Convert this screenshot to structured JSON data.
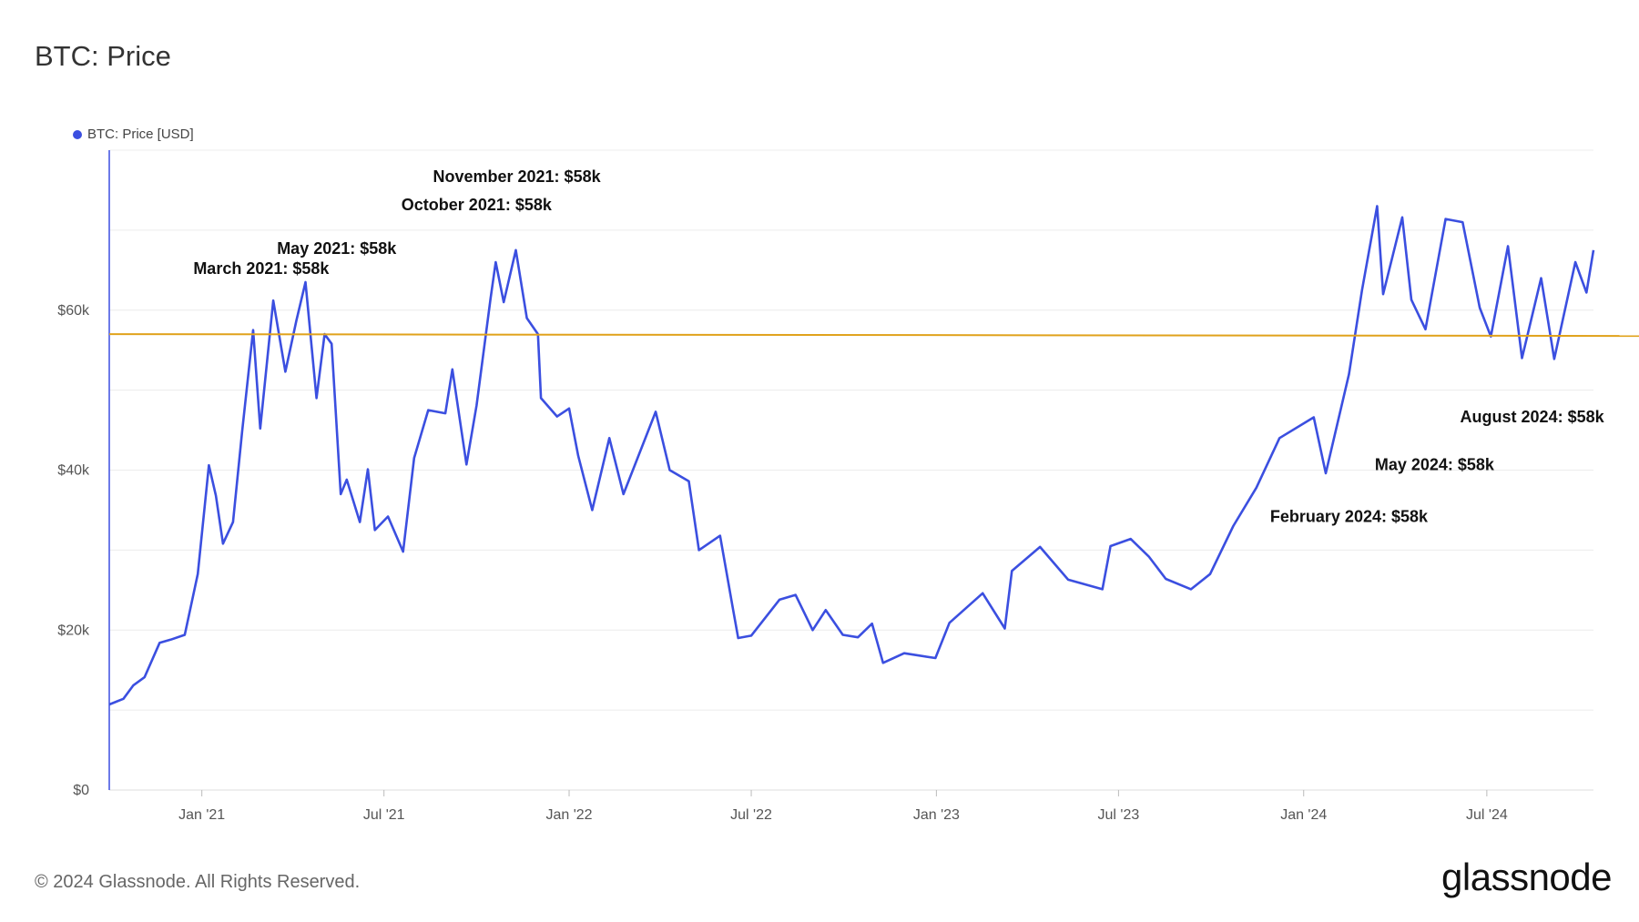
{
  "title": "BTC: Price",
  "legend": {
    "label": "BTC: Price [USD]"
  },
  "footer": {
    "copyright": "© 2024 Glassnode. All Rights Reserved.",
    "logo": "glassnode"
  },
  "colors": {
    "series": "#3b4fe0",
    "reference_line": "#e0a21b",
    "grid": "#ececec",
    "axis": "#3b4fe0"
  },
  "chart_data": {
    "type": "line",
    "title": "BTC: Price",
    "xlabel": "",
    "ylabel": "",
    "ylim": [
      0,
      80000
    ],
    "xlim": [
      "2020-10-01",
      "2024-10-15"
    ],
    "grid": true,
    "legend_position": "top-left",
    "y_ticks": [
      {
        "value": 0,
        "label": "$0"
      },
      {
        "value": 20000,
        "label": "$20k"
      },
      {
        "value": 40000,
        "label": "$40k"
      },
      {
        "value": 60000,
        "label": "$60k"
      }
    ],
    "x_ticks": [
      {
        "date": "2021-01-01",
        "label": "Jan '21"
      },
      {
        "date": "2021-07-01",
        "label": "Jul '21"
      },
      {
        "date": "2022-01-01",
        "label": "Jan '22"
      },
      {
        "date": "2022-07-01",
        "label": "Jul '22"
      },
      {
        "date": "2023-01-01",
        "label": "Jan '23"
      },
      {
        "date": "2023-07-01",
        "label": "Jul '23"
      },
      {
        "date": "2024-01-01",
        "label": "Jan '24"
      },
      {
        "date": "2024-07-01",
        "label": "Jul '24"
      }
    ],
    "reference_line": {
      "value": 57000
    },
    "annotations": [
      {
        "text": "March 2021: $58k",
        "date": "2021-03-01",
        "value": 64500
      },
      {
        "text": "May 2021: $58k",
        "date": "2021-05-15",
        "value": 67000
      },
      {
        "text": "October 2021: $58k",
        "date": "2021-10-01",
        "value": 72500
      },
      {
        "text": "November 2021: $58k",
        "date": "2021-11-10",
        "value": 76000
      },
      {
        "text": "August 2024: $58k",
        "date": "2024-08-15",
        "value": 46000
      },
      {
        "text": "May 2024: $58k",
        "date": "2024-05-10",
        "value": 40000
      },
      {
        "text": "February 2024: $58k",
        "date": "2024-02-15",
        "value": 33500
      }
    ],
    "series": [
      {
        "name": "BTC: Price [USD]",
        "points": [
          [
            "2020-10-01",
            10700
          ],
          [
            "2020-10-15",
            11400
          ],
          [
            "2020-10-25",
            13100
          ],
          [
            "2020-11-05",
            14100
          ],
          [
            "2020-11-20",
            18400
          ],
          [
            "2020-12-01",
            18800
          ],
          [
            "2020-12-15",
            19400
          ],
          [
            "2020-12-28",
            27000
          ],
          [
            "2021-01-08",
            40600
          ],
          [
            "2021-01-15",
            36800
          ],
          [
            "2021-01-22",
            30800
          ],
          [
            "2021-02-01",
            33500
          ],
          [
            "2021-02-10",
            44800
          ],
          [
            "2021-02-21",
            57500
          ],
          [
            "2021-02-28",
            45200
          ],
          [
            "2021-03-13",
            61200
          ],
          [
            "2021-03-25",
            52300
          ],
          [
            "2021-04-05",
            58700
          ],
          [
            "2021-04-14",
            63500
          ],
          [
            "2021-04-25",
            49000
          ],
          [
            "2021-05-03",
            57000
          ],
          [
            "2021-05-10",
            55800
          ],
          [
            "2021-05-19",
            37000
          ],
          [
            "2021-05-25",
            38800
          ],
          [
            "2021-06-07",
            33500
          ],
          [
            "2021-06-15",
            40100
          ],
          [
            "2021-06-22",
            32500
          ],
          [
            "2021-07-05",
            34200
          ],
          [
            "2021-07-20",
            29800
          ],
          [
            "2021-07-31",
            41500
          ],
          [
            "2021-08-14",
            47500
          ],
          [
            "2021-08-31",
            47100
          ],
          [
            "2021-09-07",
            52600
          ],
          [
            "2021-09-21",
            40700
          ],
          [
            "2021-10-01",
            48100
          ],
          [
            "2021-10-15",
            61500
          ],
          [
            "2021-10-20",
            66000
          ],
          [
            "2021-10-28",
            61000
          ],
          [
            "2021-11-09",
            67500
          ],
          [
            "2021-11-20",
            59000
          ],
          [
            "2021-12-01",
            57000
          ],
          [
            "2021-12-04",
            49000
          ],
          [
            "2021-12-20",
            46700
          ],
          [
            "2022-01-01",
            47700
          ],
          [
            "2022-01-10",
            41800
          ],
          [
            "2022-01-24",
            35000
          ],
          [
            "2022-02-10",
            44000
          ],
          [
            "2022-02-24",
            37000
          ],
          [
            "2022-03-28",
            47300
          ],
          [
            "2022-04-11",
            40000
          ],
          [
            "2022-04-30",
            38600
          ],
          [
            "2022-05-10",
            30000
          ],
          [
            "2022-05-31",
            31800
          ],
          [
            "2022-06-13",
            22500
          ],
          [
            "2022-06-18",
            19000
          ],
          [
            "2022-07-01",
            19300
          ],
          [
            "2022-07-29",
            23800
          ],
          [
            "2022-08-14",
            24400
          ],
          [
            "2022-08-31",
            20000
          ],
          [
            "2022-09-13",
            22500
          ],
          [
            "2022-09-30",
            19400
          ],
          [
            "2022-10-15",
            19100
          ],
          [
            "2022-10-29",
            20800
          ],
          [
            "2022-11-09",
            15900
          ],
          [
            "2022-11-30",
            17100
          ],
          [
            "2022-12-31",
            16500
          ],
          [
            "2023-01-14",
            20900
          ],
          [
            "2023-02-16",
            24600
          ],
          [
            "2023-03-10",
            20200
          ],
          [
            "2023-03-17",
            27400
          ],
          [
            "2023-04-14",
            30400
          ],
          [
            "2023-05-12",
            26300
          ],
          [
            "2023-06-15",
            25100
          ],
          [
            "2023-06-23",
            30500
          ],
          [
            "2023-07-13",
            31400
          ],
          [
            "2023-07-31",
            29200
          ],
          [
            "2023-08-17",
            26400
          ],
          [
            "2023-09-11",
            25100
          ],
          [
            "2023-09-30",
            27000
          ],
          [
            "2023-10-23",
            33000
          ],
          [
            "2023-11-15",
            37800
          ],
          [
            "2023-12-08",
            44000
          ],
          [
            "2024-01-11",
            46600
          ],
          [
            "2024-01-23",
            39600
          ],
          [
            "2024-02-15",
            52000
          ],
          [
            "2024-02-28",
            62500
          ],
          [
            "2024-03-14",
            73000
          ],
          [
            "2024-03-20",
            62000
          ],
          [
            "2024-04-08",
            71600
          ],
          [
            "2024-04-17",
            61300
          ],
          [
            "2024-05-01",
            57600
          ],
          [
            "2024-05-21",
            71400
          ],
          [
            "2024-06-07",
            71000
          ],
          [
            "2024-06-24",
            60300
          ],
          [
            "2024-07-05",
            56700
          ],
          [
            "2024-07-22",
            68000
          ],
          [
            "2024-08-05",
            54000
          ],
          [
            "2024-08-24",
            64000
          ],
          [
            "2024-09-06",
            53900
          ],
          [
            "2024-09-27",
            66000
          ],
          [
            "2024-10-08",
            62200
          ],
          [
            "2024-10-15",
            67500
          ]
        ]
      }
    ]
  }
}
